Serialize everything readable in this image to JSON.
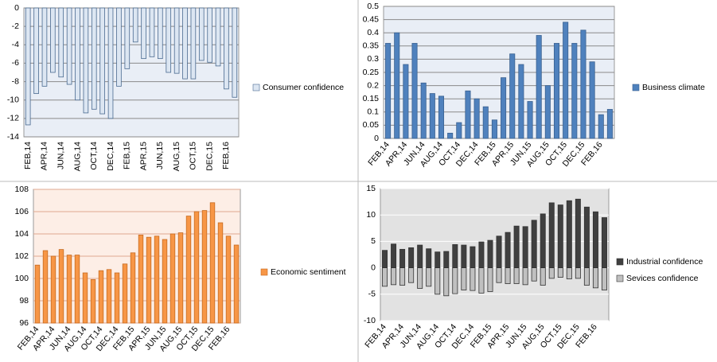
{
  "chart_data": [
    {
      "type": "bar",
      "categories": [
        "FEB,14",
        null,
        "APR,14",
        null,
        "JUN,14",
        null,
        "AUG,14",
        null,
        "OCT,14",
        null,
        "DEC,14",
        null,
        "FEB,15",
        null,
        "APR,15",
        null,
        "JUN,15",
        null,
        "AUG,15",
        null,
        "OCT,15",
        null,
        "DEC,15",
        null,
        "FEB,16",
        null
      ],
      "series": [
        {
          "name": "Consumer confidence",
          "color": "#dce6f2",
          "values": [
            -12.7,
            -9.3,
            -8.5,
            -7.0,
            -7.5,
            -8.3,
            -10.0,
            -11.4,
            -11.0,
            -11.5,
            -12.0,
            -8.5,
            -6.6,
            -3.7,
            -5.5,
            -5.3,
            -5.5,
            -7.0,
            -7.1,
            -7.7,
            -7.7,
            -5.7,
            -5.9,
            -6.3,
            -8.8,
            -9.7
          ]
        }
      ],
      "ylim": [
        -14,
        0
      ],
      "yticks": [
        0,
        -2,
        -4,
        -6,
        -8,
        -10,
        -12,
        -14
      ],
      "grid": true,
      "legend": "right"
    },
    {
      "type": "bar",
      "categories": [
        "FEB,14",
        null,
        "APR,14",
        null,
        "JUN,14",
        null,
        "AUG,14",
        null,
        "OCT,14",
        null,
        "DEC,14",
        null,
        "FEB,15",
        null,
        "APR,15",
        null,
        "JUN,15",
        null,
        "AUG,15",
        null,
        "OCT,15",
        null,
        "DEC,15",
        null,
        "FEB,16",
        null
      ],
      "series": [
        {
          "name": "Business climate",
          "color": "#4f81bd",
          "values": [
            0.36,
            0.4,
            0.28,
            0.36,
            0.21,
            0.17,
            0.16,
            0.02,
            0.06,
            0.18,
            0.15,
            0.12,
            0.07,
            0.23,
            0.32,
            0.28,
            0.14,
            0.39,
            0.2,
            0.36,
            0.44,
            0.36,
            0.41,
            0.29,
            0.09,
            0.11
          ]
        }
      ],
      "ylim": [
        0,
        0.5
      ],
      "yticks": [
        0,
        0.05,
        0.1,
        0.15,
        0.2,
        0.25,
        0.3,
        0.35,
        0.4,
        0.45,
        0.5
      ],
      "grid": true,
      "legend": "right"
    },
    {
      "type": "bar",
      "categories": [
        "FEB,14",
        null,
        "APR,14",
        null,
        "JUN,14",
        null,
        "AUG,14",
        null,
        "OCT,14",
        null,
        "DEC,14",
        null,
        "FEB,15",
        null,
        "APR,15",
        null,
        "JUN,15",
        null,
        "AUG,15",
        null,
        "OCT,15",
        null,
        "DEC,15",
        null,
        "FEB,16",
        null
      ],
      "series": [
        {
          "name": "Economic sentiment",
          "color": "#f79646",
          "values": [
            101.2,
            102.5,
            102.0,
            102.6,
            102.1,
            102.1,
            100.5,
            99.9,
            100.7,
            100.8,
            100.5,
            101.3,
            102.3,
            103.9,
            103.7,
            103.8,
            103.5,
            104.0,
            104.1,
            105.6,
            106.0,
            106.1,
            106.8,
            105.0,
            103.8,
            103.0
          ]
        }
      ],
      "ylim": [
        96,
        108
      ],
      "yticks": [
        96,
        98,
        100,
        102,
        104,
        106,
        108
      ],
      "grid": true,
      "legend": "right"
    },
    {
      "type": "bar",
      "categories": [
        "FEB,14",
        null,
        "APR,14",
        null,
        "JUN,14",
        null,
        "AUG,14",
        null,
        "OCT,14",
        null,
        "DEC,14",
        null,
        "FEB,15",
        null,
        "APR,15",
        null,
        "JUN,15",
        null,
        "AUG,15",
        null,
        "OCT,15",
        null,
        "DEC,15",
        null,
        "FEB,16",
        null
      ],
      "series": [
        {
          "name": "Industrial confidence",
          "color": "#404040",
          "values": [
            3.3,
            4.5,
            3.5,
            3.8,
            4.3,
            3.6,
            3.0,
            3.1,
            4.4,
            4.3,
            4.0,
            4.9,
            5.2,
            6.0,
            6.7,
            7.9,
            7.8,
            9.0,
            10.2,
            12.3,
            11.9,
            12.7,
            13.0,
            11.5,
            10.6,
            9.5
          ]
        },
        {
          "name": "Sevices confidence",
          "color": "#c0c0c0",
          "values": [
            -3.5,
            -3.2,
            -3.3,
            -2.8,
            -3.9,
            -3.5,
            -5.0,
            -5.3,
            -4.9,
            -4.2,
            -4.3,
            -4.8,
            -4.5,
            -2.8,
            -3.0,
            -3.0,
            -3.2,
            -2.5,
            -3.3,
            -2.0,
            -1.8,
            -2.1,
            -2.0,
            -3.3,
            -3.8,
            -4.2
          ]
        }
      ],
      "ylim": [
        -10,
        15
      ],
      "yticks": [
        -10,
        -5,
        0,
        5,
        10,
        15
      ],
      "grid": true,
      "legend": "right"
    }
  ]
}
